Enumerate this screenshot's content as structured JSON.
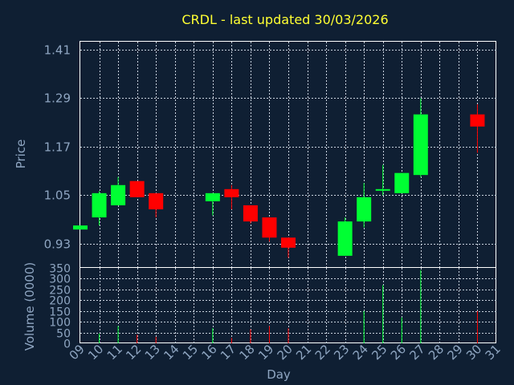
{
  "chart_data": {
    "type": "candlestick",
    "title": "CRDL - last updated 30/03/2026",
    "xlabel": "Day",
    "ylabel": "Price",
    "volume_label": "Volume (0000)",
    "x_ticks": [
      "09",
      "10",
      "11",
      "12",
      "13",
      "14",
      "15",
      "16",
      "17",
      "18",
      "19",
      "20",
      "21",
      "22",
      "23",
      "24",
      "25",
      "26",
      "27",
      "28",
      "29",
      "30",
      "31"
    ],
    "price_ticks": [
      "0.93",
      "1.05",
      "1.17",
      "1.29",
      "1.41"
    ],
    "price_range": [
      0.87,
      1.43
    ],
    "volume_ticks": [
      "0",
      "50",
      "100",
      "150",
      "200",
      "250",
      "300",
      "350"
    ],
    "volume_range": [
      0,
      350
    ],
    "grid": true,
    "colors": {
      "up": "#00ff33",
      "down": "#ff0000",
      "background": "#0f1f33",
      "title": "#ffff33",
      "axis_text": "#8fa6c2"
    },
    "candles": [
      {
        "day": 9,
        "open": 0.965,
        "close": 0.975,
        "high": 0.975,
        "low": 0.965,
        "volume": 0
      },
      {
        "day": 10,
        "open": 0.995,
        "close": 1.055,
        "high": 1.06,
        "low": 0.975,
        "volume": 45
      },
      {
        "day": 11,
        "open": 1.025,
        "close": 1.075,
        "high": 1.095,
        "low": 1.025,
        "volume": 80
      },
      {
        "day": 12,
        "open": 1.085,
        "close": 1.045,
        "high": 1.085,
        "low": 1.045,
        "volume": 40
      },
      {
        "day": 13,
        "open": 1.055,
        "close": 1.015,
        "high": 1.055,
        "low": 0.995,
        "volume": 30
      },
      {
        "day": 16,
        "open": 1.035,
        "close": 1.055,
        "high": 1.055,
        "low": 1.0,
        "volume": 70
      },
      {
        "day": 17,
        "open": 1.065,
        "close": 1.045,
        "high": 1.075,
        "low": 1.015,
        "volume": 25
      },
      {
        "day": 18,
        "open": 1.025,
        "close": 0.985,
        "high": 1.025,
        "low": 0.98,
        "volume": 65
      },
      {
        "day": 19,
        "open": 0.995,
        "close": 0.945,
        "high": 0.995,
        "low": 0.935,
        "volume": 80
      },
      {
        "day": 20,
        "open": 0.945,
        "close": 0.92,
        "high": 0.945,
        "low": 0.895,
        "volume": 70
      },
      {
        "day": 23,
        "open": 0.9,
        "close": 0.985,
        "high": 0.995,
        "low": 0.9,
        "volume": 0
      },
      {
        "day": 24,
        "open": 0.985,
        "close": 1.045,
        "high": 1.08,
        "low": 0.97,
        "volume": 150
      },
      {
        "day": 25,
        "open": 1.065,
        "close": 1.065,
        "high": 1.125,
        "low": 1.05,
        "volume": 270
      },
      {
        "day": 26,
        "open": 1.055,
        "close": 1.105,
        "high": 1.105,
        "low": 1.055,
        "volume": 120
      },
      {
        "day": 27,
        "open": 1.1,
        "close": 1.25,
        "high": 1.29,
        "low": 1.095,
        "volume": 340
      },
      {
        "day": 30,
        "open": 1.25,
        "close": 1.22,
        "high": 1.275,
        "low": 1.155,
        "volume": 150
      }
    ]
  }
}
